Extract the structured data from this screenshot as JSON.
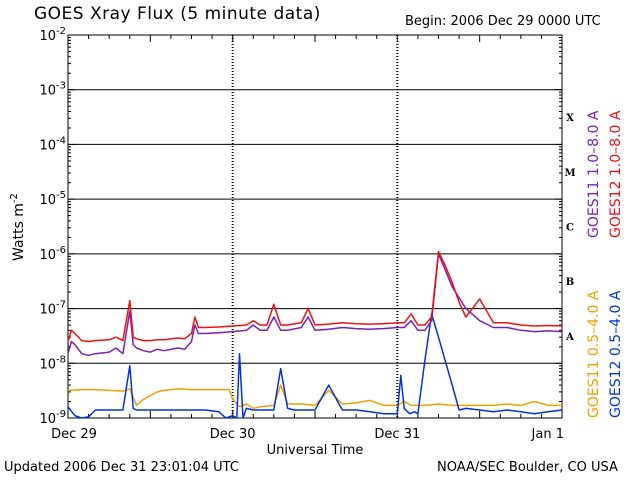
{
  "header": {
    "title": "GOES Xray Flux (5 minute data)",
    "begin": "Begin:  2006 Dec 29 0000 UTC"
  },
  "footer": {
    "updated": "Updated 2006 Dec 31 23:01:04 UTC",
    "source": "NOAA/SEC Boulder, CO USA"
  },
  "chart_data": {
    "type": "line",
    "xlabel": "Universal Time",
    "ylabel": "Watts m",
    "ylabel_sup": "-2",
    "yscale": "log",
    "ylim": [
      1e-09,
      0.01
    ],
    "xlim_hours": [
      0,
      72
    ],
    "x_tick_labels": [
      "Dec 29",
      "Dec 30",
      "Dec 31",
      "Jan 1"
    ],
    "y_tick_labels": [
      {
        "base": "10",
        "exp": "-2"
      },
      {
        "base": "10",
        "exp": "-3"
      },
      {
        "base": "10",
        "exp": "-4"
      },
      {
        "base": "10",
        "exp": "-5"
      },
      {
        "base": "10",
        "exp": "-6"
      },
      {
        "base": "10",
        "exp": "-7"
      },
      {
        "base": "10",
        "exp": "-8"
      },
      {
        "base": "10",
        "exp": "-9"
      }
    ],
    "flare_classes": [
      "X",
      "M",
      "C",
      "B",
      "A"
    ],
    "series": [
      {
        "name": "GOES11 0.5–4.0 A",
        "color": "#f0a000",
        "x": [
          0,
          2,
          4,
          6,
          8,
          9,
          10,
          11,
          13,
          14,
          16,
          18,
          20,
          22,
          23.5,
          24,
          25,
          26,
          27,
          28,
          30,
          31,
          32,
          34,
          36,
          38,
          40,
          42,
          44,
          46,
          48,
          49,
          50,
          52,
          54,
          56,
          60,
          62,
          64,
          66,
          68,
          70,
          72
        ],
        "y": [
          3.2e-09,
          3.3e-09,
          3.3e-09,
          3.2e-09,
          3.1e-09,
          3.4e-09,
          1.7e-09,
          2.2e-09,
          3e-09,
          3.2e-09,
          3.4e-09,
          3.3e-09,
          3.3e-09,
          3.3e-09,
          3.3e-09,
          2.2e-09,
          1.6e-09,
          1.8e-09,
          1.5e-09,
          1.6e-09,
          1.7e-09,
          4e-09,
          1.8e-09,
          1.8e-09,
          1.7e-09,
          3.2e-09,
          1.8e-09,
          1.9e-09,
          2.1e-09,
          1.7e-09,
          1.7e-09,
          2e-09,
          1.7e-09,
          1.7e-09,
          1.8e-09,
          1.7e-09,
          1.7e-09,
          1.7e-09,
          1.8e-09,
          1.7e-09,
          2e-09,
          1.7e-09,
          1.7e-09
        ]
      },
      {
        "name": "GOES12 0.5–4.0 A",
        "color": "#0033dd",
        "x": [
          0,
          1,
          2,
          3,
          4,
          6,
          8,
          9,
          9.5,
          10,
          11,
          13,
          16,
          18,
          20,
          22,
          23,
          24,
          24.6,
          25,
          25.5,
          26,
          27,
          28,
          29,
          30,
          31,
          32,
          33,
          34,
          36,
          38,
          40,
          42,
          44,
          46,
          48,
          48.5,
          49,
          49.8,
          50.5,
          51,
          52,
          53,
          54,
          56,
          57,
          58,
          60,
          62,
          64,
          66,
          68,
          70,
          72
        ],
        "y": [
          1.6e-09,
          1.1e-09,
          1e-09,
          1.05e-09,
          1.4e-09,
          1.4e-09,
          1.4e-09,
          9e-09,
          1.5e-09,
          1.4e-09,
          1.4e-09,
          1.4e-09,
          1.4e-09,
          1.4e-09,
          1.4e-09,
          1.3e-09,
          1e-09,
          1.1e-09,
          1e-09,
          1.5e-08,
          1e-09,
          1.5e-09,
          1.4e-09,
          1.4e-09,
          1.4e-09,
          1.4e-09,
          8e-09,
          1.5e-09,
          1.4e-09,
          1.4e-09,
          1.4e-09,
          4e-09,
          1.4e-09,
          1.4e-09,
          1.3e-09,
          1.2e-09,
          1.2e-09,
          6e-09,
          1.5e-09,
          1.2e-09,
          1.3e-09,
          1.2e-09,
          1.1e-08,
          8e-08,
          3e-08,
          4e-09,
          1.4e-09,
          1.5e-09,
          1.4e-09,
          1.3e-09,
          1.4e-09,
          1.3e-09,
          1.2e-09,
          1.3e-09,
          1.4e-09
        ]
      },
      {
        "name": "GOES11 1.0–8.0 A",
        "color": "#7a20b8",
        "x": [
          0,
          0.5,
          1,
          2,
          3,
          4,
          6,
          7,
          8,
          9,
          9.5,
          10,
          11,
          12,
          13,
          14,
          16,
          17,
          18,
          18.5,
          19,
          20,
          22,
          24,
          26,
          27,
          28,
          29,
          30,
          31,
          32,
          34,
          35,
          36,
          38,
          40,
          42,
          44,
          46,
          48,
          49,
          50,
          51,
          51.5,
          52,
          53,
          54,
          55,
          56,
          58,
          60,
          62,
          64,
          66,
          68,
          70,
          72
        ],
        "y": [
          1.5e-08,
          2.5e-08,
          2.2e-08,
          1.5e-08,
          1.4e-08,
          1.5e-08,
          1.6e-08,
          1.9e-08,
          1.5e-08,
          9e-08,
          2.2e-08,
          1.9e-08,
          1.7e-08,
          1.6e-08,
          1.8e-08,
          1.7e-08,
          1.9e-08,
          1.8e-08,
          2.5e-08,
          5e-08,
          3.5e-08,
          3.5e-08,
          3.6e-08,
          3.8e-08,
          4e-08,
          5e-08,
          4e-08,
          4e-08,
          7e-08,
          4e-08,
          4e-08,
          4.5e-08,
          7e-08,
          4e-08,
          4.2e-08,
          4.5e-08,
          4.3e-08,
          4.2e-08,
          4.3e-08,
          4.5e-08,
          4.5e-08,
          6e-08,
          4e-08,
          4e-08,
          4e-08,
          6e-08,
          1e-06,
          5e-07,
          2.5e-07,
          1e-07,
          6e-08,
          4.5e-08,
          4.5e-08,
          4e-08,
          3.8e-08,
          3.9e-08,
          3.8e-08
        ]
      },
      {
        "name": "GOES12 1.0–8.0 A",
        "color": "#ee1111",
        "x": [
          0,
          0.5,
          1,
          2,
          3,
          4,
          6,
          7,
          8,
          9,
          9.5,
          10,
          11,
          12,
          13,
          14,
          16,
          17,
          18,
          18.5,
          19,
          20,
          22,
          24,
          26,
          27,
          28,
          29,
          30,
          31,
          32,
          34,
          35,
          36,
          38,
          40,
          42,
          44,
          46,
          48,
          49,
          50,
          51,
          51.5,
          52,
          53,
          54,
          55,
          56,
          57,
          58,
          60,
          62,
          64,
          66,
          68,
          70,
          72
        ],
        "y": [
          2.5e-08,
          4e-08,
          3.5e-08,
          2.6e-08,
          2.5e-08,
          2.6e-08,
          2.7e-08,
          3e-08,
          2.6e-08,
          1.4e-07,
          3e-08,
          2.8e-08,
          2.6e-08,
          2.6e-08,
          2.7e-08,
          2.7e-08,
          2.9e-08,
          2.8e-08,
          3.5e-08,
          7e-08,
          4.5e-08,
          4.5e-08,
          4.6e-08,
          4.8e-08,
          5e-08,
          6e-08,
          5e-08,
          5e-08,
          1.2e-07,
          5e-08,
          5e-08,
          5.5e-08,
          1e-07,
          5e-08,
          5.2e-08,
          5.5e-08,
          5.3e-08,
          5.2e-08,
          5.3e-08,
          5.5e-08,
          5.5e-08,
          8e-08,
          5e-08,
          5e-08,
          5e-08,
          7e-08,
          1.1e-06,
          6e-07,
          3e-07,
          1.3e-07,
          7e-08,
          1.5e-07,
          5.5e-08,
          5.5e-08,
          5e-08,
          4.8e-08,
          4.9e-08,
          4.8e-08
        ]
      }
    ]
  }
}
